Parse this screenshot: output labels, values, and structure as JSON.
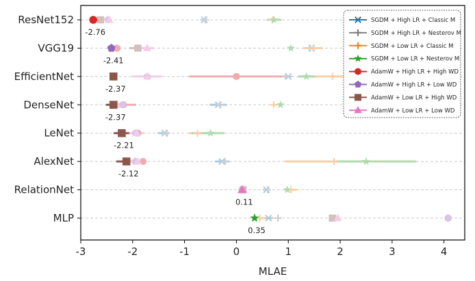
{
  "chart_data": {
    "type": "scatter",
    "title": "",
    "xlabel": "MLAE",
    "ylabel": "",
    "xlim": [
      -3,
      4.4
    ],
    "xticks": [
      "-3",
      "-2",
      "-1",
      "0",
      "1",
      "2",
      "3",
      "4"
    ],
    "xtick_values": [
      -3,
      -2,
      -1,
      0,
      1,
      2,
      3,
      4
    ],
    "grid": "horizontal dashed",
    "legend_position": "top-right",
    "categories": [
      "ResNet152",
      "VGG19",
      "EfficientNet",
      "DenseNet",
      "LeNet",
      "AlexNet",
      "RelationNet",
      "MLP"
    ],
    "series": [
      {
        "name": "SGDM + High LR + Classic M",
        "marker": "x",
        "color": "#1f77b4",
        "values": [
          -0.62,
          1.45,
          1.0,
          -0.35,
          -1.38,
          -0.28,
          0.58,
          0.62
        ],
        "err_low": [
          null,
          null,
          null,
          -0.5,
          -1.5,
          -0.4,
          null,
          null
        ],
        "err_high": [
          null,
          null,
          null,
          -0.2,
          -1.3,
          -0.15,
          null,
          null
        ]
      },
      {
        "name": "SGDM + High LR + Nesterov M",
        "marker": "plus",
        "color": "#7f7f7f",
        "values": [
          -0.6,
          1.42,
          0.95,
          -0.32,
          -1.35,
          -0.22,
          0.6,
          0.8
        ],
        "err_low": [
          null,
          null,
          null,
          null,
          null,
          null,
          null,
          null
        ],
        "err_high": [
          null,
          null,
          null,
          null,
          null,
          null,
          null,
          null
        ]
      },
      {
        "name": "SGDM + Low LR + Classic M",
        "marker": "plus",
        "color": "#ff7f0e",
        "values": [
          0.7,
          1.48,
          1.85,
          0.72,
          -0.75,
          1.88,
          1.05,
          0.45
        ],
        "err_low": [
          null,
          1.3,
          1.3,
          null,
          -0.9,
          0.95,
          0.95,
          0.35
        ],
        "err_high": [
          null,
          1.65,
          2.3,
          null,
          -0.5,
          3.4,
          1.15,
          0.7
        ]
      },
      {
        "name": "SGDM + Low LR + Nesterov M",
        "marker": "star",
        "color": "#2ca02c",
        "values": [
          0.72,
          1.05,
          1.35,
          0.85,
          -0.5,
          2.5,
          0.98,
          0.35
        ],
        "err_low": [
          0.6,
          null,
          1.2,
          null,
          -0.85,
          1.9,
          null,
          null
        ],
        "err_high": [
          0.85,
          null,
          1.5,
          null,
          -0.25,
          3.45,
          null,
          null
        ]
      },
      {
        "name": "AdamW + High LR + High WD",
        "marker": "circle",
        "color": "#d62728",
        "values": [
          -2.76,
          -2.3,
          0.0,
          -2.18,
          -1.9,
          -1.8,
          0.11,
          4.08
        ],
        "err_low": [
          null,
          null,
          -0.9,
          -2.4,
          null,
          null,
          null,
          null
        ],
        "err_high": [
          null,
          null,
          1.0,
          -1.95,
          null,
          null,
          null,
          null
        ]
      },
      {
        "name": "AdamW + High LR + Low WD",
        "marker": "pentagon",
        "color": "#9467bd",
        "values": [
          -2.48,
          -2.41,
          -1.72,
          -2.2,
          -1.95,
          -1.95,
          0.12,
          4.08
        ],
        "err_low": [
          null,
          null,
          null,
          null,
          null,
          null,
          null,
          null
        ],
        "err_high": [
          null,
          null,
          null,
          null,
          null,
          null,
          null,
          null
        ]
      },
      {
        "name": "AdamW + Low LR + High WD",
        "marker": "square",
        "color": "#8c564b",
        "values": [
          -2.62,
          -1.9,
          -2.37,
          -2.37,
          -2.21,
          -2.12,
          0.13,
          1.85
        ],
        "err_low": [
          null,
          -2.05,
          null,
          -2.5,
          -2.35,
          -2.3,
          null,
          null
        ],
        "err_high": [
          null,
          -1.75,
          null,
          -2.2,
          -2.05,
          -1.95,
          null,
          null
        ]
      },
      {
        "name": "AdamW + Low LR + Low WD",
        "marker": "triangle",
        "color": "#e377c2",
        "values": [
          -2.45,
          -1.72,
          -1.72,
          -2.3,
          -1.92,
          -1.9,
          0.11,
          1.95
        ],
        "err_low": [
          null,
          -1.85,
          -2.0,
          null,
          -2.05,
          -2.05,
          null,
          null
        ],
        "err_high": [
          null,
          -1.6,
          -1.45,
          null,
          -1.8,
          -1.75,
          null,
          null
        ]
      }
    ],
    "annotations": [
      {
        "category": "ResNet152",
        "text": "-2.76",
        "x": -2.76
      },
      {
        "category": "VGG19",
        "text": "-2.41",
        "x": -2.41
      },
      {
        "category": "EfficientNet",
        "text": "-2.37",
        "x": -2.37
      },
      {
        "category": "DenseNet",
        "text": "-2.37",
        "x": -2.37
      },
      {
        "category": "LeNet",
        "text": "-2.21",
        "x": -2.21
      },
      {
        "category": "AlexNet",
        "text": "-2.12",
        "x": -2.12
      },
      {
        "category": "RelationNet",
        "text": "0.11",
        "x": 0.11
      },
      {
        "category": "MLP",
        "text": "0.35",
        "x": 0.35
      }
    ],
    "best": [
      {
        "category": "ResNet152",
        "series": 4
      },
      {
        "category": "VGG19",
        "series": 5
      },
      {
        "category": "EfficientNet",
        "series": 6
      },
      {
        "category": "DenseNet",
        "series": 6
      },
      {
        "category": "LeNet",
        "series": 6
      },
      {
        "category": "AlexNet",
        "series": 6
      },
      {
        "category": "RelationNet",
        "series": 7
      },
      {
        "category": "MLP",
        "series": 3
      }
    ]
  }
}
